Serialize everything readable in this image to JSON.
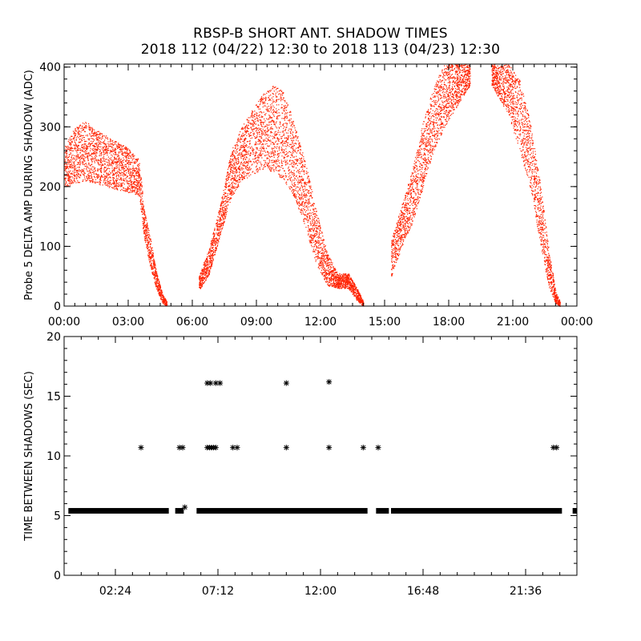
{
  "title_line1": "RBSP-B SHORT ANT. SHADOW TIMES",
  "title_line2": "2018 112 (04/22) 12:30 to 2018 113 (04/23) 12:30",
  "colors": {
    "top_points": "#ff2200",
    "bottom_marks": "#000000",
    "axis": "#000000"
  },
  "chart_data": [
    {
      "type": "scatter",
      "name": "probe5-delta-amp",
      "ylabel": "Probe 5 DELTA AMP DURING SHADOW (ADC)",
      "xlabel": "",
      "x_unit": "hours",
      "xlim": [
        0,
        24
      ],
      "ylim": [
        0,
        405
      ],
      "xticks": [
        0,
        3,
        6,
        9,
        12,
        15,
        18,
        21,
        24
      ],
      "xtick_labels": [
        "00:00",
        "03:00",
        "06:00",
        "09:00",
        "12:00",
        "15:00",
        "18:00",
        "21:00",
        "00:00"
      ],
      "yticks": [
        0,
        100,
        200,
        300,
        400
      ],
      "ytick_labels": [
        "0",
        "100",
        "200",
        "300",
        "400"
      ],
      "envelope": [
        {
          "x": 0.0,
          "lo": 200,
          "hi": 265
        },
        {
          "x": 0.5,
          "lo": 205,
          "hi": 300
        },
        {
          "x": 1.0,
          "lo": 210,
          "hi": 310
        },
        {
          "x": 1.5,
          "lo": 205,
          "hi": 295
        },
        {
          "x": 2.0,
          "lo": 200,
          "hi": 285
        },
        {
          "x": 2.5,
          "lo": 195,
          "hi": 275
        },
        {
          "x": 3.0,
          "lo": 190,
          "hi": 265
        },
        {
          "x": 3.5,
          "lo": 185,
          "hi": 245
        },
        {
          "x": 3.75,
          "lo": 110,
          "hi": 160
        },
        {
          "x": 4.0,
          "lo": 70,
          "hi": 120
        },
        {
          "x": 4.3,
          "lo": 30,
          "hi": 60
        },
        {
          "x": 4.6,
          "lo": 5,
          "hi": 20
        },
        {
          "x": 4.8,
          "lo": 0,
          "hi": 8
        },
        {
          "x": 6.3,
          "lo": 25,
          "hi": 50
        },
        {
          "x": 6.8,
          "lo": 55,
          "hi": 100
        },
        {
          "x": 7.3,
          "lo": 120,
          "hi": 170
        },
        {
          "x": 7.8,
          "lo": 180,
          "hi": 260
        },
        {
          "x": 8.3,
          "lo": 210,
          "hi": 300
        },
        {
          "x": 8.8,
          "lo": 220,
          "hi": 330
        },
        {
          "x": 9.3,
          "lo": 230,
          "hi": 355
        },
        {
          "x": 9.8,
          "lo": 225,
          "hi": 370
        },
        {
          "x": 10.3,
          "lo": 210,
          "hi": 360
        },
        {
          "x": 10.8,
          "lo": 180,
          "hi": 300
        },
        {
          "x": 11.3,
          "lo": 130,
          "hi": 240
        },
        {
          "x": 11.8,
          "lo": 70,
          "hi": 160
        },
        {
          "x": 12.3,
          "lo": 35,
          "hi": 90
        },
        {
          "x": 12.8,
          "lo": 30,
          "hi": 55
        },
        {
          "x": 13.3,
          "lo": 30,
          "hi": 55
        },
        {
          "x": 13.7,
          "lo": 10,
          "hi": 30
        },
        {
          "x": 14.0,
          "lo": 0,
          "hi": 8
        },
        {
          "x": 15.3,
          "lo": 50,
          "hi": 110
        },
        {
          "x": 15.8,
          "lo": 100,
          "hi": 170
        },
        {
          "x": 16.3,
          "lo": 140,
          "hi": 230
        },
        {
          "x": 16.8,
          "lo": 200,
          "hi": 310
        },
        {
          "x": 17.3,
          "lo": 260,
          "hi": 370
        },
        {
          "x": 17.8,
          "lo": 300,
          "hi": 405
        },
        {
          "x": 18.3,
          "lo": 330,
          "hi": 405
        },
        {
          "x": 19.0,
          "lo": 370,
          "hi": 405
        },
        {
          "x": 20.0,
          "lo": 370,
          "hi": 405
        },
        {
          "x": 20.8,
          "lo": 320,
          "hi": 405
        },
        {
          "x": 21.3,
          "lo": 260,
          "hi": 380
        },
        {
          "x": 21.8,
          "lo": 200,
          "hi": 310
        },
        {
          "x": 22.3,
          "lo": 100,
          "hi": 200
        },
        {
          "x": 22.7,
          "lo": 30,
          "hi": 90
        },
        {
          "x": 23.0,
          "lo": 5,
          "hi": 25
        },
        {
          "x": 23.2,
          "lo": 0,
          "hi": 8
        }
      ]
    },
    {
      "type": "scatter",
      "name": "time-between-shadows",
      "ylabel": "TIME BETWEEN SHADOWS (SEC)",
      "xlabel": "",
      "x_unit": "hours",
      "xlim": [
        0,
        24
      ],
      "ylim": [
        0,
        20
      ],
      "xticks": [
        2.4,
        7.2,
        12.0,
        16.8,
        21.6
      ],
      "xtick_labels": [
        "02:24",
        "07:12",
        "12:00",
        "16:48",
        "21:36"
      ],
      "yticks": [
        0,
        5,
        10,
        15,
        20
      ],
      "ytick_labels": [
        "0",
        "5",
        "10",
        "15",
        "20"
      ],
      "baseline_value": 5.4,
      "baseline_segments": [
        [
          0.2,
          4.9
        ],
        [
          5.2,
          5.6
        ],
        [
          6.2,
          14.2
        ],
        [
          14.6,
          15.2
        ],
        [
          15.3,
          23.3
        ],
        [
          23.8,
          24.0
        ]
      ],
      "points": [
        {
          "x": 3.6,
          "y": 10.7
        },
        {
          "x": 5.4,
          "y": 10.7
        },
        {
          "x": 5.55,
          "y": 10.7
        },
        {
          "x": 5.65,
          "y": 5.7
        },
        {
          "x": 6.7,
          "y": 16.1
        },
        {
          "x": 6.85,
          "y": 16.1
        },
        {
          "x": 7.1,
          "y": 16.1
        },
        {
          "x": 7.3,
          "y": 16.1
        },
        {
          "x": 6.7,
          "y": 10.7
        },
        {
          "x": 6.8,
          "y": 10.7
        },
        {
          "x": 6.9,
          "y": 10.7
        },
        {
          "x": 7.0,
          "y": 10.7
        },
        {
          "x": 7.1,
          "y": 10.7
        },
        {
          "x": 7.9,
          "y": 10.7
        },
        {
          "x": 8.1,
          "y": 10.7
        },
        {
          "x": 10.4,
          "y": 16.1
        },
        {
          "x": 10.4,
          "y": 10.7
        },
        {
          "x": 12.4,
          "y": 16.2
        },
        {
          "x": 12.4,
          "y": 10.7
        },
        {
          "x": 14.0,
          "y": 10.7
        },
        {
          "x": 14.7,
          "y": 10.7
        },
        {
          "x": 22.9,
          "y": 10.7
        },
        {
          "x": 23.05,
          "y": 10.7
        }
      ]
    }
  ]
}
